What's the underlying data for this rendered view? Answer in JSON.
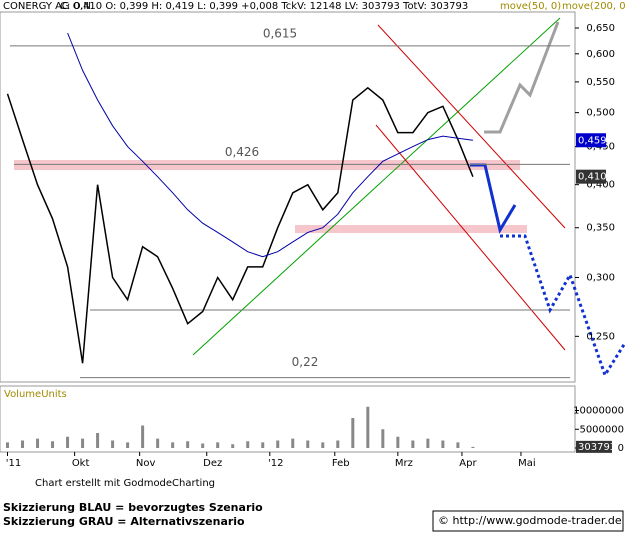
{
  "chart_data": {
    "type": "line",
    "title": "CONERGY AG O.N.",
    "quote": "C: 0,410 O: 0,399 H: 0,419 L: 0,399 +0,008 TckV: 12148 LV: 303793 TotV: 303793",
    "header_extra": "move(200, 0)",
    "x": [
      0,
      1,
      2,
      3,
      4,
      5,
      6,
      7,
      8,
      9,
      10,
      11,
      12,
      13,
      14,
      15,
      16,
      17,
      18,
      19,
      20,
      21,
      22,
      23,
      24,
      25,
      26,
      27,
      28,
      29,
      30,
      31
    ],
    "xlim": [
      -0.5,
      37.8
    ],
    "xticks": [
      {
        "value": 0,
        "label": "'11"
      },
      {
        "value": 4.47,
        "label": "Okt"
      },
      {
        "value": 8.8,
        "label": "Nov"
      },
      {
        "value": 13.27,
        "label": "Dez"
      },
      {
        "value": 17.47,
        "label": "'12"
      },
      {
        "value": 21.8,
        "label": "Feb"
      },
      {
        "value": 26,
        "label": "Mrz"
      },
      {
        "value": 30.27,
        "label": "Apr"
      },
      {
        "value": 34.2,
        "label": "Mai"
      }
    ],
    "ylim": [
      0.217,
      0.683
    ],
    "log_scale": true,
    "yticks": [
      {
        "value": 0.65,
        "label": "0,650"
      },
      {
        "value": 0.6,
        "label": "0,600"
      },
      {
        "value": 0.55,
        "label": "0,550"
      },
      {
        "value": 0.5,
        "label": "0,500"
      },
      {
        "value": 0.45,
        "label": "0,450"
      },
      {
        "value": 0.4,
        "label": "0,400"
      },
      {
        "value": 0.35,
        "label": "0,350"
      },
      {
        "value": 0.3,
        "label": "0,300"
      },
      {
        "value": 0.25,
        "label": "0,250"
      }
    ],
    "series": [
      {
        "color": "#000000",
        "values": [
          0.53,
          0.46,
          0.4,
          0.36,
          0.31,
          0.23,
          0.4,
          0.3,
          0.28,
          0.33,
          0.32,
          0.29,
          0.26,
          0.27,
          0.3,
          0.28,
          0.31,
          0.31,
          0.35,
          0.39,
          0.4,
          0.37,
          0.39,
          0.52,
          0.54,
          0.52,
          0.47,
          0.47,
          0.5,
          0.51,
          0.46,
          0.41
        ]
      },
      {
        "name": "move(50, 0)",
        "color": "#0000aa",
        "values": [
          null,
          null,
          null,
          null,
          0.64,
          0.57,
          0.52,
          0.48,
          0.45,
          0.43,
          0.41,
          0.39,
          0.37,
          0.355,
          0.345,
          0.335,
          0.325,
          0.32,
          0.325,
          0.335,
          0.345,
          0.35,
          0.365,
          0.39,
          0.41,
          0.43,
          0.44,
          0.45,
          0.46,
          0.465,
          0.462,
          0.459
        ]
      }
    ],
    "levels": [
      {
        "value": 0.615,
        "label": "0,615"
      },
      {
        "value": 0.426,
        "label": "0,426"
      },
      {
        "value": 0.22,
        "label": "0,22"
      }
    ],
    "tags": [
      {
        "value": 0.459,
        "label": "0,459",
        "color": "#0000cc"
      },
      {
        "value": 0.41,
        "label": "0,410",
        "color": "#333333"
      }
    ],
    "volume": {
      "title": "VolumeUnits",
      "color": "#888888",
      "values": [
        1500000,
        2000000,
        2500000,
        1800000,
        3000000,
        2500000,
        4000000,
        2000000,
        1500000,
        6000000,
        2500000,
        1500000,
        1800000,
        1200000,
        1500000,
        1000000,
        1800000,
        1500000,
        2000000,
        2500000,
        2000000,
        1500000,
        2000000,
        8000000,
        11000000,
        5000000,
        3000000,
        2000000,
        2500000,
        2000000,
        1500000,
        303793
      ],
      "ylim": [
        0,
        12000000
      ],
      "yticks": [
        {
          "value": 0,
          "label": "0"
        },
        {
          "value": 5000000,
          "label": "5000000"
        },
        {
          "value": 10000000,
          "label": "10000000"
        }
      ],
      "tag": {
        "value": 303793,
        "label": "303793"
      }
    },
    "credit": "Chart erstellt mit GodmodeCharting",
    "notes": [
      "Skizzierung BLAU = bevorzugtes Szenario",
      "Skizzierung GRAU = Alternativszenario"
    ],
    "url": "© http://www.godmode-trader.de"
  }
}
